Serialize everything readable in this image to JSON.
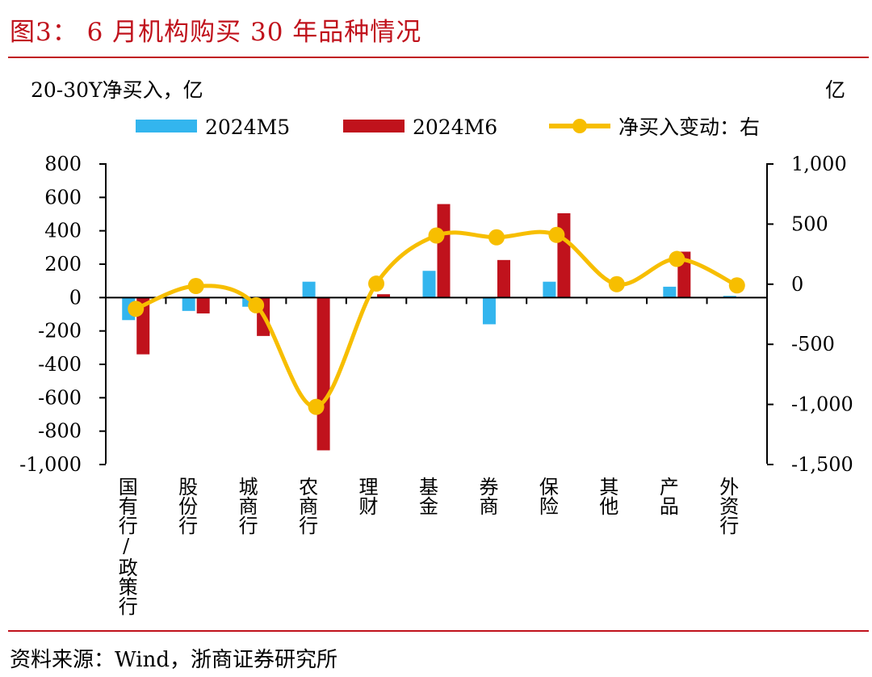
{
  "header": {
    "title": "图3：  6 月机构购买 30 年品种情况"
  },
  "footer": {
    "source": "资料来源：Wind，浙商证券研究所"
  },
  "colors": {
    "title_red": "#c0121c",
    "series_m5": "#33b5ee",
    "series_m6": "#c0121c",
    "series_change": "#f7be00"
  },
  "chart_data": {
    "type": "bar",
    "categories": [
      "国有行/政策行",
      "股份行",
      "城商行",
      "农商行",
      "理财",
      "基金",
      "券商",
      "保险",
      "其他",
      "产品",
      "外资行"
    ],
    "ylabel": "20-30Y净买入，亿",
    "y2label": "亿",
    "ylim": [
      -1000,
      800
    ],
    "y2lim": [
      -1500,
      1000
    ],
    "yticks": [
      "800",
      "600",
      "400",
      "200",
      "0",
      "-200",
      "-400",
      "-600",
      "-800",
      "-1,000"
    ],
    "y2ticks": [
      "1,000",
      "500",
      "0",
      "-500",
      "-1,000",
      "-1,500"
    ],
    "legend_position": "top",
    "grid": false,
    "series": [
      {
        "name": "2024M5",
        "type": "bar",
        "axis": "left",
        "values": [
          -135,
          -80,
          -55,
          95,
          0,
          160,
          -160,
          95,
          0,
          65,
          10
        ]
      },
      {
        "name": "2024M6",
        "type": "bar",
        "axis": "left",
        "values": [
          -340,
          -95,
          -230,
          -915,
          20,
          560,
          225,
          505,
          0,
          275,
          0
        ]
      },
      {
        "name": "净买入变动：右",
        "type": "line",
        "axis": "right",
        "smooth": true,
        "values": [
          -205,
          -15,
          -175,
          -1020,
          5,
          405,
          390,
          410,
          0,
          210,
          -10
        ]
      }
    ]
  }
}
